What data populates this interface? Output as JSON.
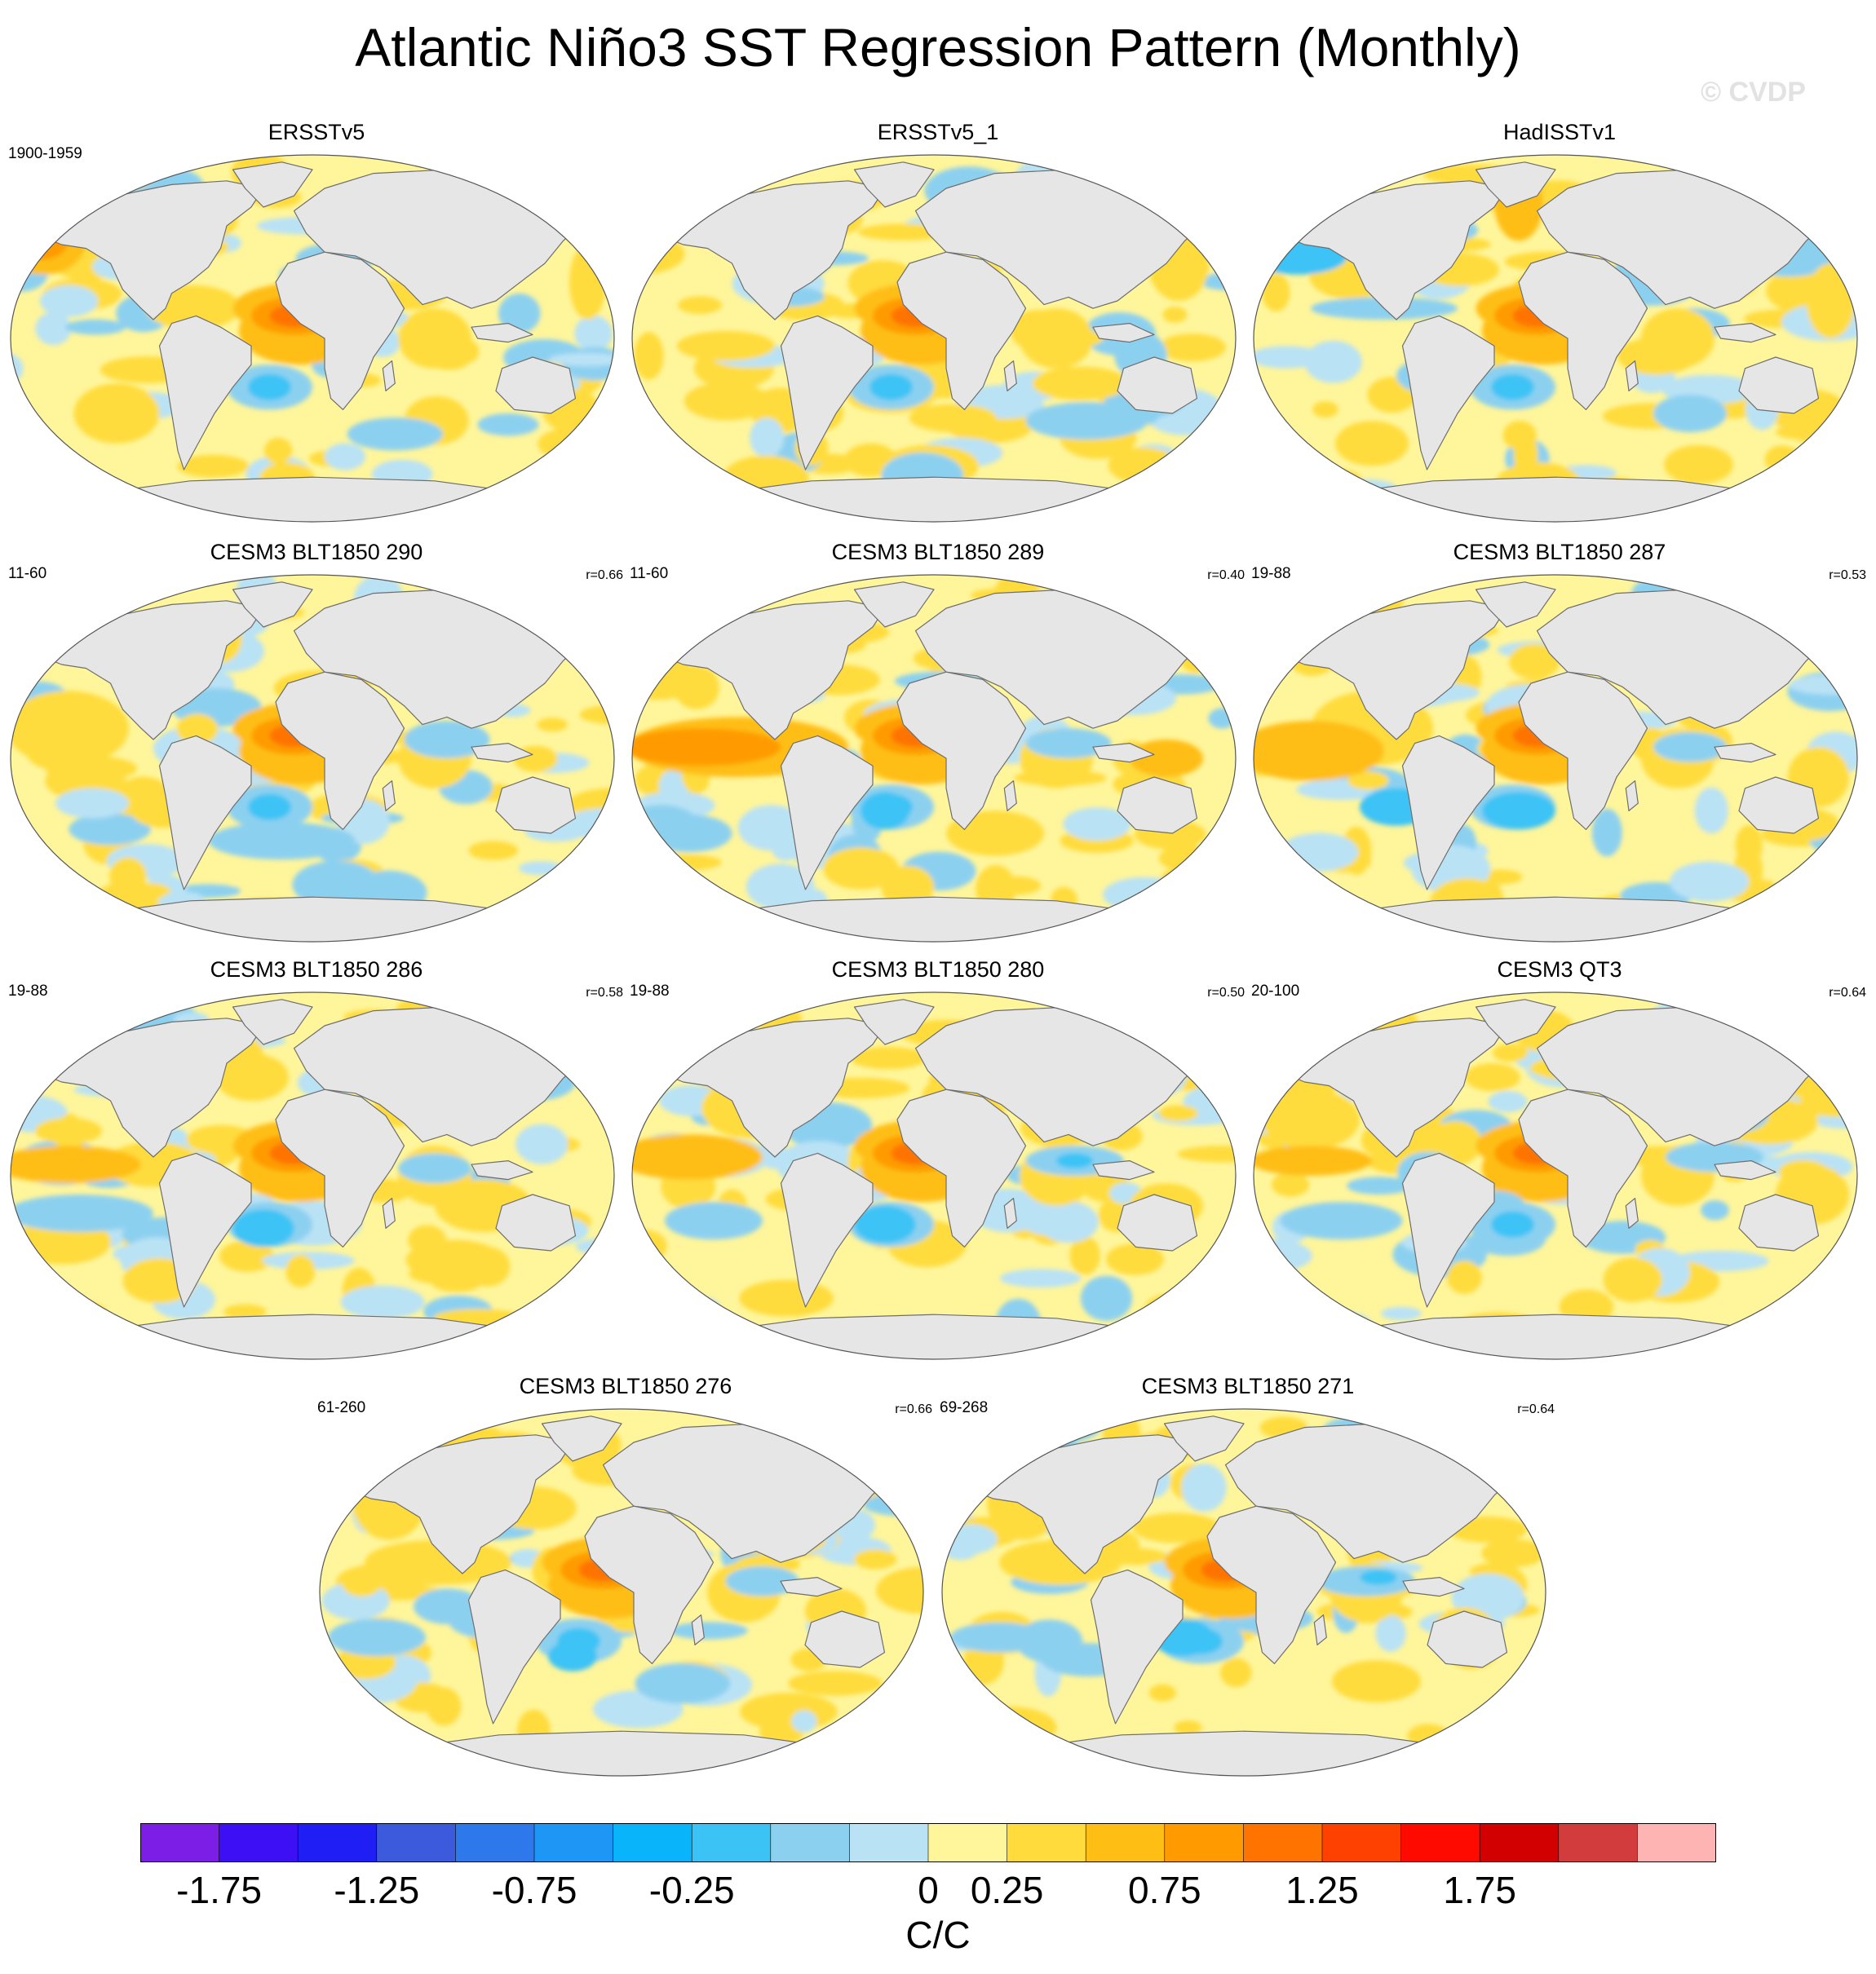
{
  "title": "Atlantic Niño3 SST Regression Pattern (Monthly)",
  "watermark": "© CVDP",
  "chart_data": {
    "type": "heatmap",
    "description_type": "global SST regression maps (Robinson projection), 11 panels",
    "units": "C/C",
    "colorbar": {
      "colors": [
        "#7d1ee6",
        "#3c0ff5",
        "#1e1ef5",
        "#3c5adc",
        "#2d78eb",
        "#1e96f5",
        "#0ab4fa",
        "#3cc3f5",
        "#8cd0f0",
        "#b9e2f5",
        "#fff59b",
        "#ffdc3c",
        "#ffbe14",
        "#ff9b00",
        "#ff7300",
        "#ff4100",
        "#ff0a00",
        "#d20000",
        "#d23c3c",
        "#ffb4b4"
      ],
      "tick_labels": [
        "-1.75",
        "-1.25",
        "-0.75",
        "-0.25",
        "0",
        "0.25",
        "0.75",
        "1.25",
        "1.75"
      ],
      "tick_values": [
        -1.75,
        -1.25,
        -0.75,
        -0.25,
        0,
        0.25,
        0.75,
        1.25,
        1.75
      ]
    },
    "panels": [
      {
        "title": "ERSSTv5",
        "period": "1900-1959",
        "corr": "",
        "variant": 0
      },
      {
        "title": "ERSSTv5_1",
        "period": "",
        "corr": "",
        "variant": 1
      },
      {
        "title": "HadISSTv1",
        "period": "",
        "corr": "",
        "variant": 2
      },
      {
        "title": "CESM3 BLT1850 290",
        "period": "11-60",
        "corr": "r=0.66",
        "variant": 3
      },
      {
        "title": "CESM3 BLT1850 289",
        "period": "11-60",
        "corr": "r=0.40",
        "variant": 4
      },
      {
        "title": "CESM3 BLT1850 287",
        "period": "19-88",
        "corr": "r=0.53",
        "variant": 5
      },
      {
        "title": "CESM3 BLT1850 286",
        "period": "19-88",
        "corr": "r=0.58",
        "variant": 6
      },
      {
        "title": "CESM3 BLT1850 280",
        "period": "19-88",
        "corr": "r=0.50",
        "variant": 7
      },
      {
        "title": "CESM3 QT3",
        "period": "20-100",
        "corr": "r=0.64",
        "variant": 8
      },
      {
        "title": "CESM3 BLT1850 276",
        "period": "61-260",
        "corr": "r=0.66",
        "variant": 9
      },
      {
        "title": "CESM3 BLT1850 271",
        "period": "69-268",
        "corr": "r=0.64",
        "variant": 10
      }
    ]
  }
}
